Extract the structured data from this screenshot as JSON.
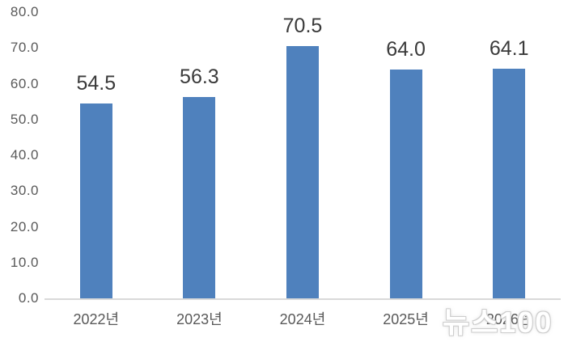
{
  "chart_data": {
    "type": "bar",
    "categories": [
      "2022년",
      "2023년",
      "2024년",
      "2025년",
      "2026년"
    ],
    "values": [
      54.5,
      56.3,
      70.5,
      64.0,
      64.1
    ],
    "data_labels": [
      "54.5",
      "56.3",
      "70.5",
      "64.0",
      "64.1"
    ],
    "title": "",
    "xlabel": "",
    "ylabel": "",
    "ylim": [
      0,
      80
    ],
    "y_ticks": [
      "0.0",
      "10.0",
      "20.0",
      "30.0",
      "40.0",
      "50.0",
      "60.0",
      "70.0",
      "80.0"
    ],
    "grid": false,
    "legend": false,
    "bar_color": "#4F81BD",
    "axis_line_color": "#D9D9D9",
    "tick_label_color": "#595959",
    "data_label_color": "#3A3A3A"
  },
  "watermark": {
    "text": "뉴스100",
    "color": "#FFFFFF",
    "outline_color": "#CDCDCD"
  }
}
